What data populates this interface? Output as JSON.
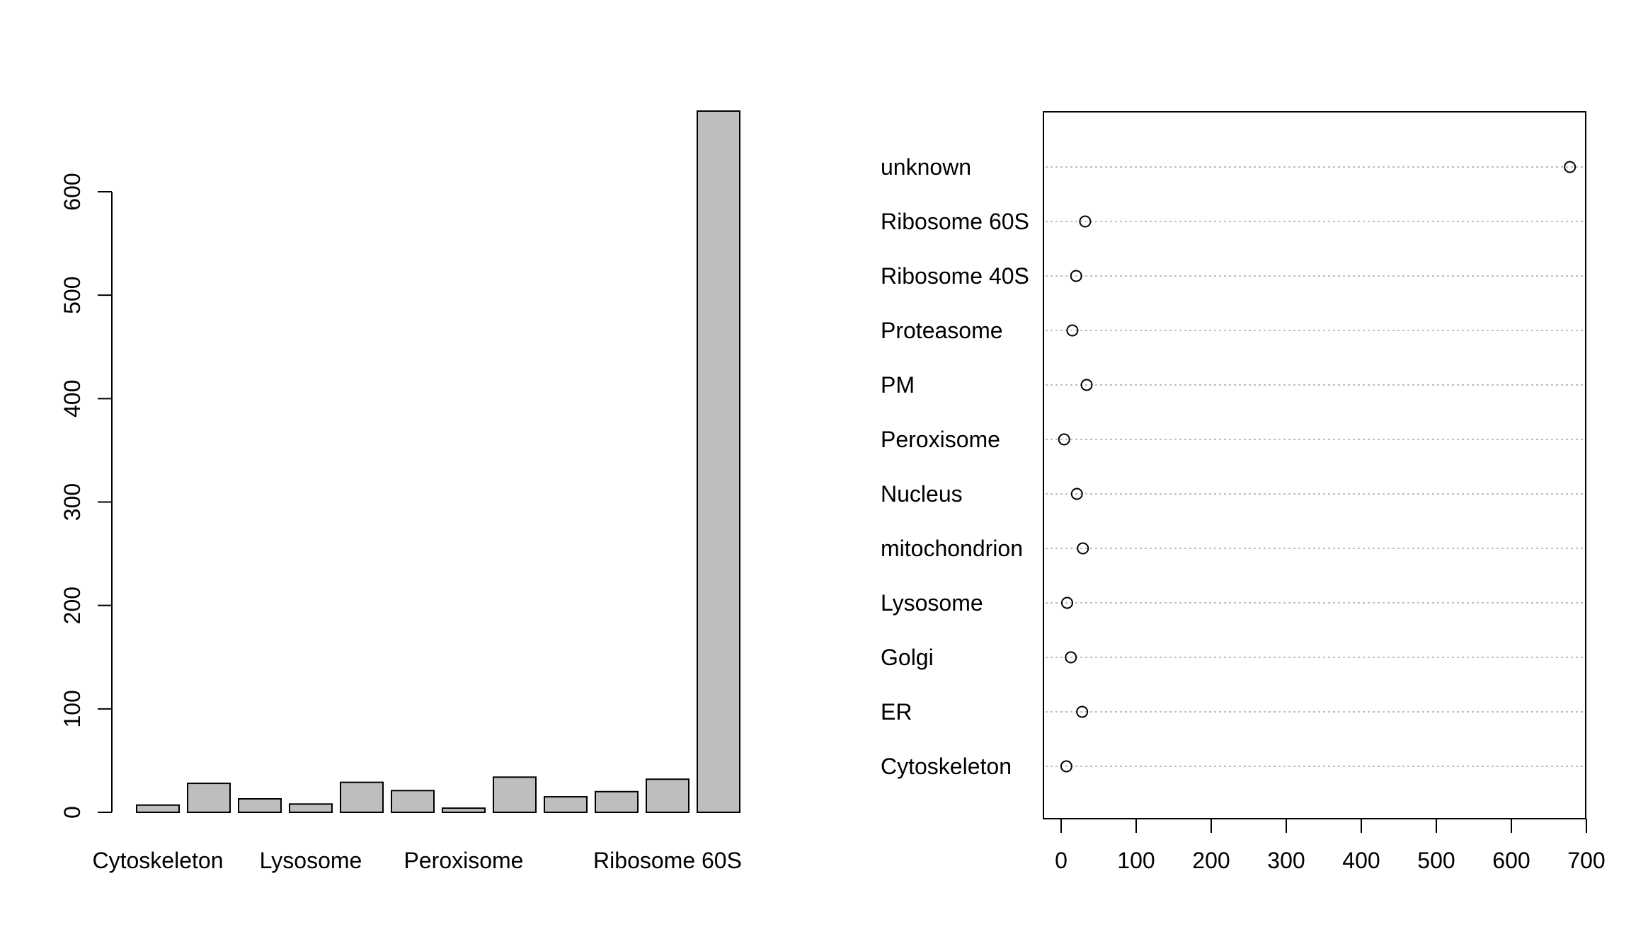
{
  "chart_data": [
    {
      "type": "bar",
      "categories": [
        "Cytoskeleton",
        "ER",
        "Golgi",
        "Lysosome",
        "mitochondrion",
        "Nucleus",
        "Peroxisome",
        "PM",
        "Proteasome",
        "Ribosome 40S",
        "Ribosome 60S",
        "unknown"
      ],
      "visible_category_labels": [
        "Cytoskeleton",
        "Lysosome",
        "Peroxisome",
        "Ribosome 60S"
      ],
      "values": [
        7,
        28,
        13,
        8,
        29,
        21,
        4,
        34,
        15,
        20,
        32,
        678
      ],
      "yticks": [
        0,
        100,
        200,
        300,
        400,
        500,
        600
      ],
      "ylim": [
        0,
        678
      ],
      "bar_color": "#bebebe",
      "grid": false
    },
    {
      "type": "scatter",
      "categories": [
        "unknown",
        "Ribosome 60S",
        "Ribosome 40S",
        "Proteasome",
        "PM",
        "Peroxisome",
        "Nucleus",
        "mitochondrion",
        "Lysosome",
        "Golgi",
        "ER",
        "Cytoskeleton"
      ],
      "values": [
        678,
        32,
        20,
        15,
        34,
        4,
        21,
        29,
        8,
        13,
        28,
        7
      ],
      "xticks": [
        0,
        100,
        200,
        300,
        400,
        500,
        600,
        700
      ],
      "xlim": [
        0,
        700
      ],
      "grid": true,
      "grid_color": "#bebebe"
    }
  ]
}
